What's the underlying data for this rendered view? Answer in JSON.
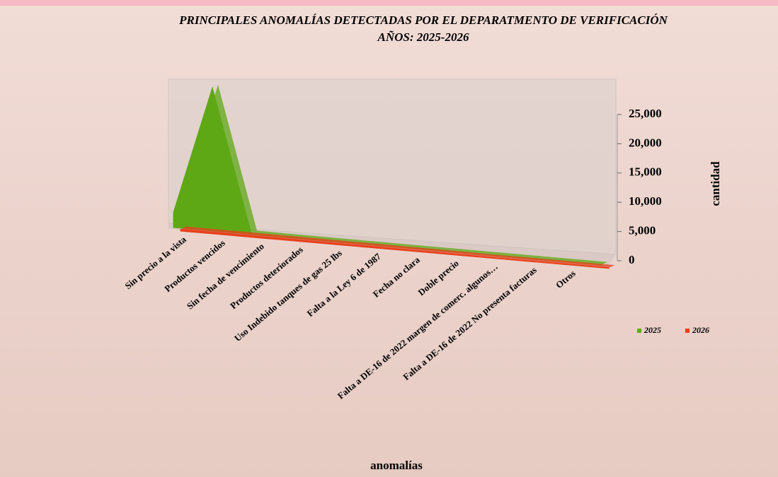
{
  "chart_data": {
    "type": "area3d",
    "title": "PRINCIPALES ANOMALÍAS DETECTADAS POR EL DEPARATMENTO DE VERIFICACIÓN",
    "subtitle": "AÑOS: 2025-2026",
    "x_label": "anomalías",
    "y_label": "cantidad",
    "categories": [
      "Sin precio a la vista",
      "Productos vencidos",
      "Sin fecha de vencimiento",
      "Productos deteriorados",
      "Uso Indebido tanques de gas 25 lbs",
      "Falta a la Ley 6 de 1987",
      "Fecha no clara",
      "Doble precio",
      "Falta a DE-16 de 2022 margen de comerc. algunos…",
      "Falta a DE-16 de 2022 No presenta facturas",
      "Otros",
      null
    ],
    "series": [
      {
        "name": "2025",
        "color": "#5ea816",
        "values": [
          2600,
          24500,
          150,
          100,
          80,
          60,
          50,
          40,
          30,
          30,
          20,
          10
        ]
      },
      {
        "name": "2026",
        "color": "#e8401c",
        "values": [
          300,
          300,
          250,
          250,
          200,
          200,
          150,
          150,
          100,
          100,
          100,
          80
        ]
      }
    ],
    "ylim": [
      0,
      25000
    ],
    "yticks": [
      0,
      {
        "value": 5000,
        "label": "5,000"
      },
      {
        "value": 10000,
        "label": "10,000"
      },
      {
        "value": 15000,
        "label": "15,000"
      },
      {
        "value": 20000,
        "label": "20,000"
      },
      {
        "value": 25000,
        "label": "25,000"
      }
    ],
    "legend": "right"
  }
}
